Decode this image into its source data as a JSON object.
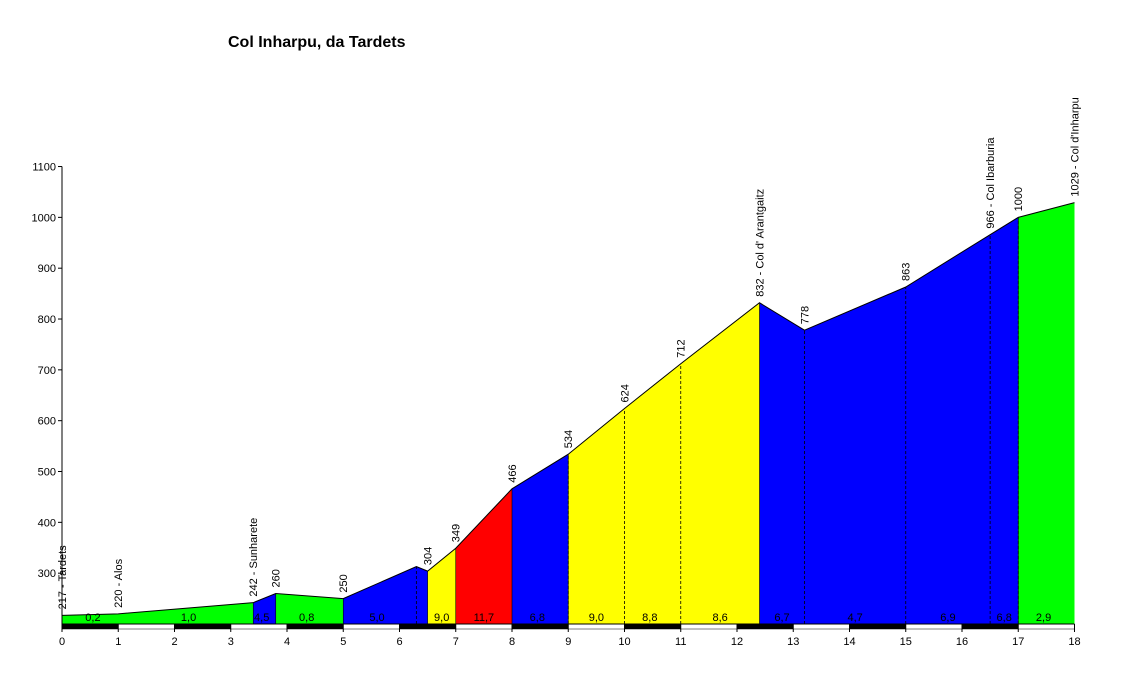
{
  "chart_data": {
    "type": "area",
    "title": "Col Inharpu, da Tardets",
    "xlabel": "",
    "ylabel": "",
    "xlim": [
      0,
      18
    ],
    "ylim": [
      200,
      1100
    ],
    "yticks": [
      300,
      400,
      500,
      600,
      700,
      800,
      900,
      1000,
      1100
    ],
    "xticks": [
      0,
      1,
      2,
      3,
      4,
      5,
      6,
      7,
      8,
      9,
      10,
      11,
      12,
      13,
      14,
      15,
      16,
      17,
      18
    ],
    "grid": false,
    "legend": "none",
    "colors": {
      "green": "#00ff00",
      "blue": "#0000ff",
      "yellow": "#ffff00",
      "red": "#ff0000"
    },
    "profile": [
      {
        "x": 0,
        "y": 217
      },
      {
        "x": 1,
        "y": 220
      },
      {
        "x": 3.4,
        "y": 242
      },
      {
        "x": 3.8,
        "y": 260
      },
      {
        "x": 5,
        "y": 250
      },
      {
        "x": 6.3,
        "y": 313
      },
      {
        "x": 6.5,
        "y": 304
      },
      {
        "x": 7,
        "y": 349
      },
      {
        "x": 8,
        "y": 466
      },
      {
        "x": 9,
        "y": 534
      },
      {
        "x": 10,
        "y": 624
      },
      {
        "x": 11,
        "y": 712
      },
      {
        "x": 12.4,
        "y": 832
      },
      {
        "x": 13.2,
        "y": 778
      },
      {
        "x": 15,
        "y": 863
      },
      {
        "x": 16.5,
        "y": 966
      },
      {
        "x": 17,
        "y": 1000
      },
      {
        "x": 18,
        "y": 1029
      }
    ],
    "segments": [
      {
        "x0": 0,
        "x1": 3.4,
        "color": "green",
        "grade": "0,2",
        "grade_x": 0.55
      },
      {
        "x0": 0,
        "x1": 3.4,
        "color": "green",
        "grade": "1,0",
        "grade_x": 2.25
      },
      {
        "x0": 3.4,
        "x1": 3.8,
        "color": "blue",
        "grade": "4,5",
        "grade_x": 3.55
      },
      {
        "x0": 3.8,
        "x1": 5,
        "color": "green",
        "grade": "0,8",
        "grade_x": 4.35
      },
      {
        "x0": 5,
        "x1": 6.5,
        "color": "blue",
        "grade": "5,0",
        "grade_x": 5.6
      },
      {
        "x0": 6.5,
        "x1": 7,
        "color": "yellow",
        "grade": "9,0",
        "grade_x": 6.75
      },
      {
        "x0": 7,
        "x1": 8,
        "color": "red",
        "grade": "11,7",
        "grade_x": 7.5
      },
      {
        "x0": 8,
        "x1": 9,
        "color": "blue",
        "grade": "6,8",
        "grade_x": 8.45
      },
      {
        "x0": 9,
        "x1": 10,
        "color": "yellow",
        "grade": "9,0",
        "grade_x": 9.5
      },
      {
        "x0": 10,
        "x1": 11,
        "color": "yellow",
        "grade": "8,8",
        "grade_x": 10.45
      },
      {
        "x0": 11,
        "x1": 12.4,
        "color": "yellow",
        "grade": "8,6",
        "grade_x": 11.7
      },
      {
        "x0": 12.4,
        "x1": 15,
        "color": "blue",
        "grade": "6,7",
        "grade_x": 12.8
      },
      {
        "x0": 12.4,
        "x1": 15,
        "color": "blue",
        "grade": "4,7",
        "grade_x": 14.1
      },
      {
        "x0": 15,
        "x1": 16.5,
        "color": "blue",
        "grade": "6,9",
        "grade_x": 15.75
      },
      {
        "x0": 16.5,
        "x1": 17,
        "color": "blue",
        "grade": "6,8",
        "grade_x": 16.75
      },
      {
        "x0": 17,
        "x1": 18,
        "color": "green",
        "grade": "2,9",
        "grade_x": 17.45
      }
    ],
    "fills": [
      {
        "x0": 0,
        "x1": 3.4,
        "color": "green"
      },
      {
        "x0": 3.4,
        "x1": 3.8,
        "color": "blue"
      },
      {
        "x0": 3.8,
        "x1": 5,
        "color": "green"
      },
      {
        "x0": 5,
        "x1": 6.5,
        "color": "blue"
      },
      {
        "x0": 6.5,
        "x1": 7,
        "color": "yellow"
      },
      {
        "x0": 7,
        "x1": 8,
        "color": "red"
      },
      {
        "x0": 8,
        "x1": 9,
        "color": "blue"
      },
      {
        "x0": 9,
        "x1": 12.4,
        "color": "yellow"
      },
      {
        "x0": 12.4,
        "x1": 17,
        "color": "blue"
      },
      {
        "x0": 17,
        "x1": 18,
        "color": "green"
      }
    ],
    "dashed_markers": [
      6.3,
      9,
      10,
      11,
      13.2,
      15,
      16.5,
      17
    ],
    "annotations": [
      {
        "x": 0,
        "y": 217,
        "label": "217 - Tardets"
      },
      {
        "x": 1,
        "y": 220,
        "label": "220 - Alos"
      },
      {
        "x": 3.4,
        "y": 242,
        "label": "242 - Sunharete"
      },
      {
        "x": 3.8,
        "y": 260,
        "label": "260"
      },
      {
        "x": 5,
        "y": 250,
        "label": "250"
      },
      {
        "x": 6.5,
        "y": 304,
        "label": "304"
      },
      {
        "x": 7,
        "y": 349,
        "label": "349"
      },
      {
        "x": 8,
        "y": 466,
        "label": "466"
      },
      {
        "x": 9,
        "y": 534,
        "label": "534"
      },
      {
        "x": 10,
        "y": 624,
        "label": "624"
      },
      {
        "x": 11,
        "y": 712,
        "label": "712"
      },
      {
        "x": 12.4,
        "y": 832,
        "label": "832 - Col d' Arantgaitz"
      },
      {
        "x": 13.2,
        "y": 778,
        "label": "778"
      },
      {
        "x": 15,
        "y": 863,
        "label": "863"
      },
      {
        "x": 16.5,
        "y": 966,
        "label": "966 - Col Ibarburia"
      },
      {
        "x": 17,
        "y": 1000,
        "label": "1000"
      },
      {
        "x": 18,
        "y": 1029,
        "label": "1029 - Col d'Inharpu"
      }
    ]
  }
}
